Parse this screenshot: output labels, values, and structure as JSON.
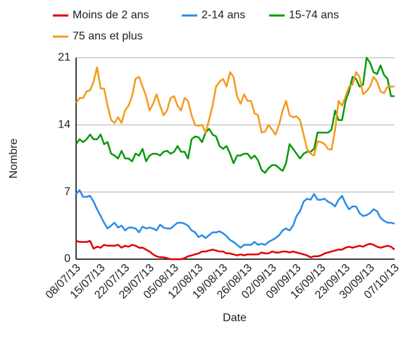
{
  "chart_data": {
    "type": "line",
    "x_label": "Date",
    "y_label": "Nombre",
    "ylim": [
      0,
      21
    ],
    "yticks": [
      0,
      7,
      14,
      21
    ],
    "grid": true,
    "legend": "top",
    "categories": [
      "08/07/13",
      null,
      null,
      null,
      null,
      null,
      null,
      "15/07/13",
      null,
      null,
      null,
      null,
      null,
      null,
      "22/07/13",
      null,
      null,
      null,
      null,
      null,
      null,
      "29/07/13",
      null,
      null,
      null,
      null,
      null,
      null,
      "05/08/13",
      null,
      null,
      null,
      null,
      null,
      null,
      "12/08/13",
      null,
      null,
      null,
      null,
      null,
      null,
      "19/08/13",
      null,
      null,
      null,
      null,
      null,
      null,
      "26/08/13",
      null,
      null,
      null,
      null,
      null,
      null,
      "02/09/13",
      null,
      null,
      null,
      null,
      null,
      null,
      "09/09/13",
      null,
      null,
      null,
      null,
      null,
      null,
      "16/09/13",
      null,
      null,
      null,
      null,
      null,
      null,
      "23/09/13",
      null,
      null,
      null,
      null,
      null,
      null,
      "30/09/13",
      null,
      null,
      null,
      null,
      null,
      null,
      "07/10/13"
    ],
    "series": [
      {
        "name": "Moins de 2 ans",
        "color": "#e00000",
        "values": [
          1.9,
          1.8,
          1.8,
          1.8,
          1.9,
          1.1,
          1.3,
          1.2,
          1.5,
          1.4,
          1.4,
          1.4,
          1.5,
          1.2,
          1.4,
          1.3,
          1.5,
          1.4,
          1.2,
          1.2,
          1,
          0.8,
          0.5,
          0.3,
          0.2,
          0.2,
          0.1,
          0,
          0,
          0,
          0,
          0.1,
          0.3,
          0.4,
          0.5,
          0.6,
          0.8,
          0.8,
          0.9,
          1,
          0.9,
          0.8,
          0.8,
          0.6,
          0.6,
          0.5,
          0.4,
          0.5,
          0.4,
          0.5,
          0.5,
          0.5,
          0.5,
          0.7,
          0.6,
          0.6,
          0.8,
          0.7,
          0.7,
          0.8,
          0.8,
          0.7,
          0.8,
          0.7,
          0.6,
          0.5,
          0.4,
          0.2,
          0.3,
          0.3,
          0.4,
          0.6,
          0.7,
          0.8,
          0.9,
          1,
          1,
          1.2,
          1.3,
          1.2,
          1.3,
          1.4,
          1.3,
          1.5,
          1.6,
          1.5,
          1.3,
          1.2,
          1.3,
          1.4,
          1.3,
          1
        ]
      },
      {
        "name": "2-14 ans",
        "color": "#2b8ce8",
        "values": [
          6.8,
          7.2,
          6.5,
          6.5,
          6.6,
          6,
          5.2,
          4.5,
          3.8,
          3.2,
          3.5,
          3.8,
          3.3,
          3.5,
          3,
          3.3,
          3.3,
          3.2,
          2.8,
          3.4,
          3.2,
          3.3,
          3.2,
          3,
          3.6,
          3.3,
          3.2,
          3.2,
          3.5,
          3.8,
          3.8,
          3.7,
          3.5,
          3,
          2.8,
          2.3,
          2.5,
          2.2,
          2.5,
          2.8,
          2.8,
          2.9,
          2.7,
          2.4,
          2,
          1.8,
          1.5,
          1.2,
          1.5,
          1.5,
          1.5,
          1.8,
          1.5,
          1.6,
          1.5,
          1.8,
          2,
          2.2,
          2.5,
          3,
          3.2,
          3,
          3.5,
          4.5,
          5,
          6,
          6.3,
          6.2,
          6.8,
          6.2,
          6.2,
          6.3,
          6,
          5.8,
          5.5,
          6.2,
          6.6,
          5.8,
          5.2,
          5.5,
          5.5,
          4.8,
          4.5,
          4.6,
          4.8,
          5.2,
          5,
          4.3,
          4,
          3.8,
          3.8,
          3.7
        ]
      },
      {
        "name": "15-74 ans",
        "color": "#0a9a0a",
        "values": [
          12,
          12.5,
          12.2,
          12.5,
          13,
          12.5,
          12.5,
          13,
          12,
          12.2,
          11,
          10.8,
          10.5,
          11.3,
          10.5,
          10.5,
          10.2,
          11,
          10.8,
          11.5,
          10.2,
          10.8,
          11,
          11,
          10.8,
          11.2,
          11.3,
          11,
          11.2,
          11.8,
          11.2,
          11.2,
          10.5,
          12.5,
          12.8,
          12.7,
          12.2,
          13.2,
          13.6,
          13,
          12.8,
          11.8,
          11.5,
          11.8,
          11,
          10,
          10.8,
          10.8,
          11,
          11,
          10.5,
          10.8,
          10.3,
          9.3,
          9,
          9.5,
          9.8,
          9.8,
          9.5,
          9.2,
          10,
          12,
          11.5,
          11,
          10.5,
          11,
          11.2,
          11.2,
          11.5,
          13.2,
          13.2,
          13.2,
          13.2,
          13.5,
          15.5,
          14.5,
          14.5,
          16.5,
          17.5,
          19,
          18.8,
          18,
          18.2,
          21,
          20.5,
          19.5,
          19.3,
          20.2,
          19.2,
          18.8,
          17,
          17
        ]
      },
      {
        "name": "75 ans et plus",
        "color": "#f59a1e",
        "values": [
          16.3,
          16.8,
          16.8,
          17.5,
          17.6,
          18.5,
          20,
          17.8,
          17.8,
          16,
          14.5,
          14.2,
          14.8,
          14.2,
          15.5,
          16,
          17,
          18.8,
          19,
          18,
          17,
          15.5,
          16.2,
          17.2,
          16,
          15,
          15.5,
          16.8,
          17,
          16,
          15.5,
          16.8,
          16.5,
          15,
          14,
          13.9,
          14,
          13.2,
          14.5,
          16,
          18,
          18.5,
          18.8,
          18,
          19.5,
          19,
          17,
          16.2,
          17.2,
          16.5,
          16.5,
          15.2,
          15,
          13.2,
          13.3,
          14,
          13.5,
          13,
          14,
          15.5,
          16.5,
          15,
          14.8,
          14.9,
          14.5,
          13,
          11.5,
          11,
          10.8,
          12.3,
          12.2,
          12,
          11.5,
          11.4,
          13.5,
          16.5,
          16,
          17,
          18,
          18.2,
          19.5,
          19,
          17.2,
          17.5,
          18,
          19,
          18.5,
          17.5,
          17.3,
          18,
          18,
          18
        ]
      }
    ]
  }
}
